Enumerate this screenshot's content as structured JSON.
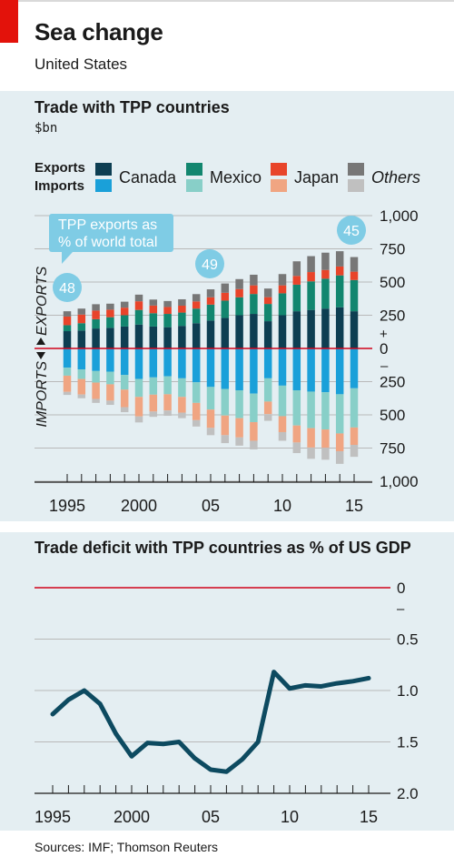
{
  "title": "Sea change",
  "subtitle": "United States",
  "source": "Sources: IMF; Thomson Reuters",
  "colors": {
    "canada_export": "#0d3e52",
    "canada_import": "#1aa0d9",
    "mexico_export": "#12866f",
    "mexico_import": "#88cfc8",
    "japan_export": "#e8442a",
    "japan_import": "#f0a582",
    "others_export": "#777777",
    "others_import": "#c0c0c0",
    "deficit_line": "#0d4a60",
    "callout": "#7fcce5"
  },
  "legend": {
    "exports_label": "Exports",
    "imports_label": "Imports",
    "items": [
      {
        "name": "Canada",
        "italic": false
      },
      {
        "name": "Mexico",
        "italic": false
      },
      {
        "name": "Japan",
        "italic": false
      },
      {
        "name": "Others",
        "italic": true
      }
    ]
  },
  "chart_data": [
    {
      "type": "bar",
      "stacked": true,
      "title": "Trade with TPP countries",
      "unit": "$bn",
      "axis_labels": {
        "up": "EXPORTS",
        "down": "IMPORTS",
        "plus": "+",
        "minus": "–"
      },
      "ylim": [
        -1000,
        1000
      ],
      "y_ticks": [
        {
          "value": 1000,
          "label": "1,000"
        },
        {
          "value": 750,
          "label": "750"
        },
        {
          "value": 500,
          "label": "500"
        },
        {
          "value": 250,
          "label": "250"
        },
        {
          "value": 0,
          "label": "0"
        },
        {
          "value": -250,
          "label": "250"
        },
        {
          "value": -500,
          "label": "500"
        },
        {
          "value": -750,
          "label": "750"
        },
        {
          "value": -1000,
          "label": "1,000"
        }
      ],
      "x_ticks": [
        {
          "year": 1995,
          "label": "1995"
        },
        {
          "year": 2000,
          "label": "2000"
        },
        {
          "year": 2005,
          "label": "05"
        },
        {
          "year": 2010,
          "label": "10"
        },
        {
          "year": 2015,
          "label": "15"
        }
      ],
      "x": [
        1995,
        1996,
        1997,
        1998,
        1999,
        2000,
        2001,
        2002,
        2003,
        2004,
        2005,
        2006,
        2007,
        2008,
        2009,
        2010,
        2011,
        2012,
        2013,
        2014,
        2015
      ],
      "exports": {
        "Canada": [
          130,
          135,
          150,
          155,
          165,
          180,
          165,
          160,
          170,
          190,
          210,
          230,
          250,
          260,
          205,
          250,
          280,
          290,
          300,
          310,
          280
        ],
        "Mexico": [
          45,
          55,
          70,
          80,
          85,
          110,
          100,
          100,
          100,
          110,
          120,
          130,
          135,
          150,
          130,
          165,
          200,
          215,
          225,
          240,
          235
        ],
        "Japan": [
          65,
          65,
          65,
          57,
          57,
          65,
          58,
          52,
          52,
          54,
          55,
          59,
          62,
          65,
          51,
          60,
          66,
          70,
          66,
          67,
          63
        ],
        "Others": [
          40,
          45,
          48,
          45,
          45,
          50,
          45,
          45,
          48,
          55,
          60,
          70,
          75,
          80,
          65,
          85,
          110,
          120,
          130,
          115,
          110
        ]
      },
      "imports": {
        "Canada": [
          145,
          158,
          170,
          175,
          200,
          230,
          218,
          210,
          225,
          255,
          290,
          305,
          315,
          340,
          225,
          280,
          315,
          325,
          330,
          345,
          300
        ],
        "Mexico": [
          60,
          72,
          87,
          95,
          110,
          135,
          130,
          135,
          140,
          155,
          170,
          200,
          210,
          215,
          175,
          230,
          265,
          275,
          280,
          295,
          295
        ],
        "Japan": [
          122,
          117,
          123,
          123,
          132,
          147,
          127,
          122,
          118,
          130,
          138,
          148,
          145,
          140,
          95,
          120,
          128,
          146,
          138,
          134,
          131
        ],
        "Others": [
          23,
          28,
          30,
          32,
          38,
          45,
          40,
          40,
          42,
          48,
          55,
          60,
          62,
          65,
          50,
          65,
          80,
          85,
          90,
          95,
          90
        ]
      },
      "annotations": {
        "label": "TPP exports as % of world total",
        "points": [
          {
            "year": 1995,
            "value": "48"
          },
          {
            "year": 2005,
            "value": "49"
          },
          {
            "year": 2015,
            "value": "45"
          }
        ]
      }
    },
    {
      "type": "line",
      "title": "Trade deficit with TPP countries as % of US GDP",
      "y_inverted": true,
      "ylim": [
        0,
        2.0
      ],
      "y_ticks": [
        {
          "value": 0,
          "label": "0"
        },
        {
          "value": 0.5,
          "label": "0.5"
        },
        {
          "value": 1.0,
          "label": "1.0"
        },
        {
          "value": 1.5,
          "label": "1.5"
        },
        {
          "value": 2.0,
          "label": "2.0"
        }
      ],
      "minus_label": "–",
      "x_ticks": [
        {
          "year": 1995,
          "label": "1995"
        },
        {
          "year": 2000,
          "label": "2000"
        },
        {
          "year": 2005,
          "label": "05"
        },
        {
          "year": 2010,
          "label": "10"
        },
        {
          "year": 2015,
          "label": "15"
        }
      ],
      "x": [
        1995,
        1996,
        1997,
        1998,
        1999,
        2000,
        2001,
        2002,
        2003,
        2004,
        2005,
        2006,
        2007,
        2008,
        2009,
        2010,
        2011,
        2012,
        2013,
        2014,
        2015
      ],
      "series": [
        {
          "values": [
            1.23,
            1.09,
            1.0,
            1.13,
            1.42,
            1.64,
            1.51,
            1.52,
            1.5,
            1.66,
            1.77,
            1.79,
            1.67,
            1.5,
            0.82,
            0.98,
            0.95,
            0.96,
            0.93,
            0.91,
            0.88
          ]
        }
      ]
    }
  ]
}
